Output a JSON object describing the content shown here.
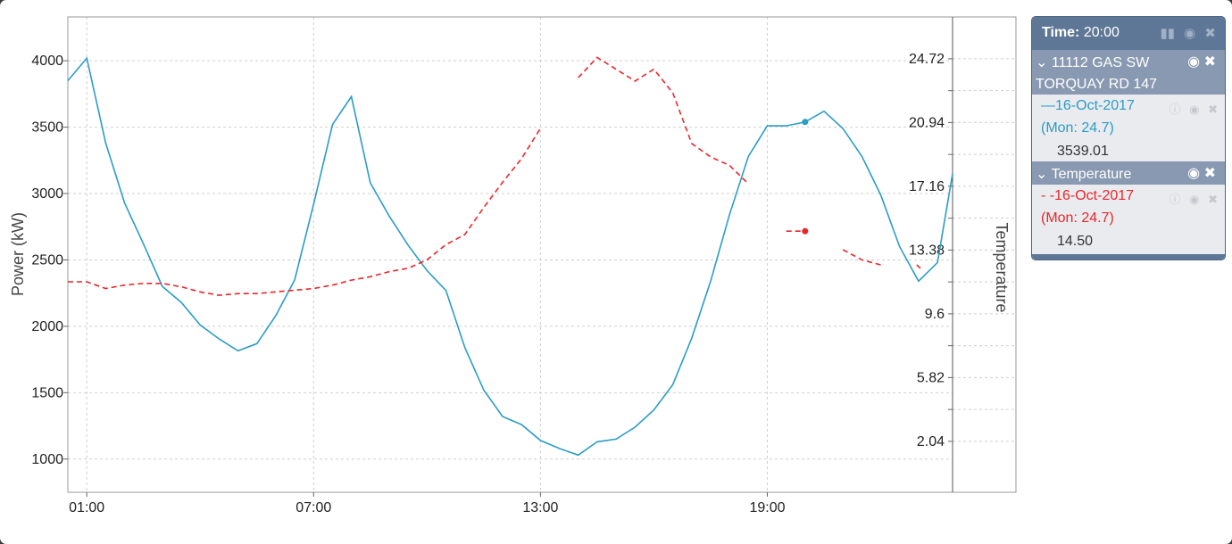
{
  "chart_data": {
    "type": "line",
    "x_labels": [
      "01:00",
      "07:00",
      "13:00",
      "19:00"
    ],
    "xlim_hours": [
      0.5,
      23.9
    ],
    "left_axis": {
      "label": "Power (kW)",
      "ticks": [
        1000,
        1500,
        2000,
        2500,
        3000,
        3500,
        4000
      ],
      "tick_labels": [
        "1000",
        "1500",
        "2000",
        "2500",
        "3000",
        "3500",
        "4000"
      ],
      "ylim": [
        750,
        4330
      ]
    },
    "right_axis": {
      "label": "Temperature",
      "tick_labels": [
        "2.04",
        "5.82",
        "9.6",
        "13.38",
        "17.16",
        "20.94",
        "24.72"
      ],
      "ticks": [
        2.04,
        3.93,
        5.82,
        7.71,
        9.6,
        11.49,
        13.38,
        15.27,
        17.16,
        19.05,
        20.94,
        22.83,
        24.72
      ],
      "ylim": [
        -0.98,
        27.2
      ]
    },
    "grid": true,
    "series": [
      {
        "name": "11112 GAS SW TORQUAY RD 147",
        "axis": "left",
        "color": "#2b9cc5",
        "dash": "solid",
        "x": [
          0.5,
          1.0,
          1.5,
          2.0,
          2.5,
          3.0,
          3.5,
          4.0,
          4.5,
          5.0,
          5.5,
          6.0,
          6.5,
          7.0,
          7.5,
          8.0,
          8.5,
          9.0,
          9.5,
          10.0,
          10.5,
          11.0,
          11.5,
          12.0,
          12.5,
          13.0,
          13.5,
          14.0,
          14.5,
          15.0,
          15.5,
          16.0,
          16.5,
          17.0,
          17.5,
          18.0,
          18.5,
          19.0,
          19.5,
          20.0,
          20.5,
          21.0,
          21.5,
          22.0,
          22.5,
          23.0,
          23.5,
          23.9
        ],
        "values": [
          3850,
          4020,
          3380,
          2930,
          2620,
          2300,
          2180,
          2010,
          1905,
          1815,
          1870,
          2080,
          2350,
          2920,
          3520,
          3730,
          3080,
          2830,
          2610,
          2420,
          2270,
          1840,
          1520,
          1320,
          1260,
          1140,
          1080,
          1030,
          1130,
          1150,
          1240,
          1370,
          1560,
          1910,
          2340,
          2840,
          3280,
          3510,
          3510,
          3539,
          3620,
          3490,
          3280,
          2990,
          2600,
          2340,
          2480,
          3150
        ]
      },
      {
        "name": "Temperature",
        "axis": "right",
        "color": "#e8262a",
        "dash": "dashed",
        "segments": [
          {
            "x": [
              0.5,
              1.0,
              1.5,
              2.0,
              2.5,
              3.0,
              3.5,
              4.0,
              4.5,
              5.0,
              5.5,
              6.0,
              6.5,
              7.0,
              7.5,
              8.0,
              8.5,
              9.0,
              9.5,
              10.0,
              10.5,
              11.0,
              11.5,
              12.0,
              12.5,
              13.0
            ],
            "values": [
              11.5,
              11.5,
              11.1,
              11.3,
              11.4,
              11.4,
              11.2,
              10.9,
              10.7,
              10.8,
              10.8,
              10.9,
              11.0,
              11.1,
              11.3,
              11.6,
              11.8,
              12.1,
              12.3,
              12.8,
              13.7,
              14.3,
              15.9,
              17.4,
              18.8,
              20.6
            ]
          },
          {
            "x": [
              14.0,
              14.5,
              15.0,
              15.5,
              16.0,
              16.5,
              17.0,
              17.5,
              18.0,
              18.5
            ],
            "values": [
              23.6,
              24.8,
              24.1,
              23.4,
              24.1,
              22.7,
              19.7,
              18.9,
              18.4,
              17.3
            ]
          },
          {
            "x": [
              19.5,
              20.0
            ],
            "values": [
              14.5,
              14.5
            ]
          },
          {
            "x": [
              21.0,
              21.5,
              22.0
            ],
            "values": [
              13.4,
              12.8,
              12.5
            ]
          },
          {
            "x": [
              22.95,
              23.05
            ],
            "values": [
              12.5,
              12.3
            ]
          }
        ]
      }
    ],
    "markers": [
      {
        "series": 0,
        "x": 20.0,
        "value": 3539.01
      },
      {
        "series": 1,
        "x": 20.0,
        "value": 14.5
      }
    ]
  },
  "legend": {
    "time_label": "Time:",
    "time_value": "20:00",
    "header_icons": [
      "bar-chart-icon",
      "eye-slash-icon",
      "close-icon"
    ],
    "sections": [
      {
        "name": "11112 GAS SW TORQUAY RD 147",
        "item": {
          "date": "16-Oct-2017",
          "mon": "(Mon: 24.7)",
          "value": "3539.01",
          "color": "#2b9cc5"
        }
      },
      {
        "name": "Temperature",
        "item": {
          "date": "16-Oct-2017",
          "mon": "(Mon: 24.7)",
          "value": "14.50",
          "color": "#e8262a"
        }
      }
    ]
  }
}
